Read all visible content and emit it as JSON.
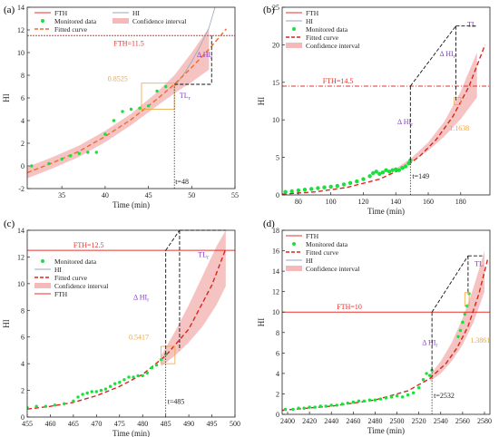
{
  "colors": {
    "fth": "#e8302b",
    "monitored": "#19e03c",
    "fitted": "#d9261c",
    "fitted_a": "#f06a2a",
    "band": "#f4b9b9",
    "hi_a": "#9aa7b8",
    "annot_value": "#f2a53a",
    "annot_delta": "#8040c0",
    "axis": "#222222"
  },
  "chart_data": [
    {
      "type": "line",
      "panel": "(a)",
      "xlabel": "Time (min)",
      "ylabel": "HI",
      "xlim": [
        31,
        55
      ],
      "ylim": [
        -2,
        14
      ],
      "xticks": [
        35,
        40,
        45,
        50,
        55
      ],
      "yticks": [
        -2,
        0,
        2,
        4,
        6,
        8,
        10,
        12,
        14
      ],
      "grid": false,
      "legend": {
        "placement": "top",
        "entries": [
          "FTH",
          "HI",
          "Monitored data",
          "Confidence interval",
          "Fitted curve"
        ]
      },
      "fth": 11.5,
      "fth_label": "FTH=11.5",
      "t_current": 48,
      "t_label": "t=48",
      "value_label": "0.8525",
      "delta_label": "Δ HI",
      "delta_sub": "r",
      "tl_label": "TL",
      "tl_sub": "r",
      "monitored": {
        "x": [
          31.5,
          33.5,
          35,
          36,
          37,
          38,
          39,
          40,
          41,
          42,
          43,
          44,
          45,
          46,
          47
        ],
        "y": [
          0.0,
          0.2,
          0.6,
          0.9,
          1.1,
          1.2,
          1.2,
          2.8,
          4.0,
          4.8,
          5.0,
          5.1,
          5.3,
          6.6,
          7.0
        ]
      },
      "fitted": {
        "x": [
          31,
          34,
          37,
          40,
          43,
          46,
          48,
          50,
          52,
          54
        ],
        "y": [
          -0.6,
          0.3,
          1.3,
          2.6,
          4.1,
          5.9,
          7.2,
          8.7,
          10.3,
          12.1
        ]
      },
      "band": {
        "x": [
          31,
          34,
          37,
          40,
          43,
          46,
          48,
          50,
          52
        ],
        "lower": [
          -1.1,
          -0.2,
          0.8,
          2.1,
          3.6,
          5.3,
          6.4,
          7.4,
          8.5
        ],
        "upper": [
          -0.1,
          0.8,
          1.8,
          3.1,
          4.6,
          6.5,
          8.0,
          10.0,
          12.2
        ]
      },
      "hi_sample": {
        "x": [
          48,
          49,
          50,
          51,
          52,
          53
        ],
        "y": [
          7.0,
          8.0,
          9.2,
          10.6,
          12.2,
          14.8
        ]
      },
      "box": {
        "x": [
          44.2,
          48
        ],
        "y": [
          5.0,
          7.3
        ]
      }
    },
    {
      "type": "line",
      "panel": "(b)",
      "xlabel": "Time (min)",
      "ylabel": "HI",
      "xlim": [
        70,
        198
      ],
      "ylim": [
        0,
        25
      ],
      "xticks": [
        80,
        100,
        120,
        140,
        160,
        180
      ],
      "yticks": [
        0,
        5,
        10,
        15,
        20,
        25
      ],
      "grid": false,
      "legend": {
        "placement": "top-left",
        "entries": [
          "FTH",
          "HI",
          "Monitored data",
          "Fitted curve",
          "Confidence interval"
        ]
      },
      "fth": 14.5,
      "fth_label": "FTH=14.5",
      "t_current": 149,
      "t_label": "t=149",
      "value_label": "1.1638",
      "delta_label": "Δ HI",
      "delta_sub": "r",
      "delta2_label": "Δ HI",
      "delta2_sub": "r",
      "tl_label": "TL",
      "monitored": {
        "x": [
          72,
          76,
          80,
          84,
          88,
          92,
          96,
          100,
          104,
          108,
          112,
          116,
          120,
          124,
          126,
          128,
          130,
          132,
          134,
          136,
          138,
          140,
          142,
          144,
          146,
          148,
          149
        ],
        "y": [
          0.4,
          0.5,
          0.6,
          0.7,
          0.8,
          0.9,
          1.0,
          1.1,
          1.2,
          1.4,
          1.6,
          1.8,
          2.1,
          2.5,
          2.9,
          3.1,
          2.8,
          3.0,
          3.3,
          3.1,
          3.3,
          3.4,
          3.3,
          3.6,
          3.8,
          4.2,
          4.6
        ]
      },
      "fitted": {
        "x": [
          70,
          90,
          110,
          130,
          145,
          155,
          165,
          175,
          185,
          195
        ],
        "y": [
          0.1,
          0.4,
          1.0,
          2.1,
          3.6,
          5.2,
          7.4,
          10.4,
          14.4,
          20.0
        ]
      },
      "band": {
        "x": [
          140,
          150,
          160,
          170,
          180,
          190
        ],
        "lower": [
          3.2,
          4.4,
          5.9,
          7.8,
          10.1,
          13.0
        ],
        "upper": [
          3.5,
          5.0,
          7.0,
          9.8,
          13.8,
          19.0
        ]
      },
      "box": {
        "x": [
          176,
          180
        ],
        "y": [
          12.0,
          13.0
        ]
      }
    },
    {
      "type": "line",
      "panel": "(c)",
      "xlabel": "Time (min)",
      "ylabel": "HI",
      "xlim": [
        455,
        500
      ],
      "ylim": [
        0,
        14
      ],
      "xticks": [
        455,
        460,
        465,
        470,
        475,
        480,
        485,
        490,
        495,
        500
      ],
      "yticks": [
        0,
        2,
        4,
        6,
        8,
        10,
        12,
        14
      ],
      "grid": false,
      "legend": {
        "placement": "upper-left",
        "entries": [
          "Monitored data",
          "HI",
          "Fitted curve",
          "Confidence interval",
          "FTH"
        ]
      },
      "fth": 12.5,
      "fth_label": "FTH=12.5",
      "t_current": 485,
      "t_label": "t=485",
      "value_label": "0.5417",
      "delta_label": "Δ HI",
      "delta_sub": "r",
      "tl_label": "TL",
      "tl_sub": "r",
      "monitored": {
        "x": [
          455,
          457,
          459,
          461,
          463,
          465,
          466,
          467,
          468,
          469,
          470,
          471,
          472,
          473,
          474,
          475,
          476,
          477,
          478,
          479,
          480,
          481,
          482,
          483,
          484,
          485
        ],
        "y": [
          0.7,
          0.8,
          0.8,
          0.9,
          1.0,
          1.2,
          1.5,
          1.7,
          1.8,
          1.9,
          1.9,
          2.0,
          2.1,
          2.3,
          2.5,
          2.6,
          2.8,
          3.0,
          3.0,
          3.1,
          3.1,
          3.3,
          3.7,
          3.9,
          4.3,
          4.7
        ]
      },
      "fitted": {
        "x": [
          455,
          460,
          465,
          470,
          475,
          480,
          485,
          490,
          495,
          498
        ],
        "y": [
          0.6,
          0.8,
          1.1,
          1.6,
          2.3,
          3.2,
          4.6,
          6.6,
          9.9,
          12.6
        ]
      },
      "band": {
        "x": [
          484,
          487,
          490,
          493,
          496,
          498
        ],
        "lower": [
          3.8,
          4.6,
          5.6,
          6.8,
          8.4,
          9.8
        ],
        "upper": [
          4.6,
          6.4,
          8.4,
          10.6,
          12.8,
          14.0
        ]
      },
      "box": {
        "x": [
          484,
          487
        ],
        "y": [
          4.0,
          5.3
        ]
      }
    },
    {
      "type": "line",
      "panel": "(d)",
      "xlabel": "Time (min)",
      "ylabel": "HI",
      "xlim": [
        2395,
        2585
      ],
      "ylim": [
        0,
        18
      ],
      "xticks": [
        2400,
        2420,
        2440,
        2460,
        2480,
        2500,
        2520,
        2540,
        2560,
        2580
      ],
      "yticks": [
        0,
        2,
        4,
        6,
        8,
        10,
        12,
        14,
        16,
        18
      ],
      "grid": false,
      "legend": {
        "placement": "top-left",
        "entries": [
          "FTH",
          "Monitored data",
          "Fitted curve",
          "HI",
          "Confidence interval"
        ]
      },
      "fth": 10,
      "fth_label": "FTH=10",
      "t_current": 2532,
      "t_label": "t=2532",
      "value_label": "1.3861",
      "delta_label": "Δ HI",
      "delta_sub": "r",
      "tl_label": "TL",
      "monitored": {
        "x": [
          2398,
          2405,
          2410,
          2415,
          2420,
          2425,
          2430,
          2435,
          2440,
          2445,
          2450,
          2455,
          2460,
          2465,
          2470,
          2475,
          2480,
          2485,
          2490,
          2495,
          2500,
          2505,
          2510,
          2515,
          2520,
          2524,
          2527,
          2530,
          2532
        ],
        "y": [
          0.5,
          0.5,
          0.6,
          0.6,
          0.7,
          0.7,
          0.8,
          0.8,
          0.9,
          0.9,
          1.0,
          1.1,
          1.2,
          1.3,
          1.3,
          1.4,
          1.4,
          1.5,
          1.6,
          1.7,
          1.8,
          1.7,
          1.9,
          2.1,
          2.6,
          3.4,
          4.0,
          3.8,
          4.3
        ]
      },
      "monitored_late": {
        "x": [
          2556,
          2558,
          2560,
          2562,
          2564,
          2566
        ],
        "y": [
          7.6,
          8.2,
          9.0,
          9.8,
          10.6,
          11.8
        ]
      },
      "fitted": {
        "x": [
          2395,
          2440,
          2480,
          2510,
          2530,
          2545,
          2555,
          2565,
          2575,
          2583
        ],
        "y": [
          0.4,
          0.8,
          1.4,
          2.3,
          3.5,
          5.0,
          6.5,
          8.6,
          11.8,
          15.2
        ]
      },
      "band": {
        "x": [
          2530,
          2540,
          2550,
          2560,
          2570,
          2580
        ],
        "lower": [
          3.2,
          4.0,
          5.2,
          6.8,
          9.0,
          12.0
        ],
        "upper": [
          3.8,
          5.2,
          7.0,
          9.4,
          12.4,
          16.0
        ]
      },
      "box": {
        "x": [
          2562,
          2566
        ],
        "y": [
          10.6,
          11.9
        ]
      }
    }
  ]
}
